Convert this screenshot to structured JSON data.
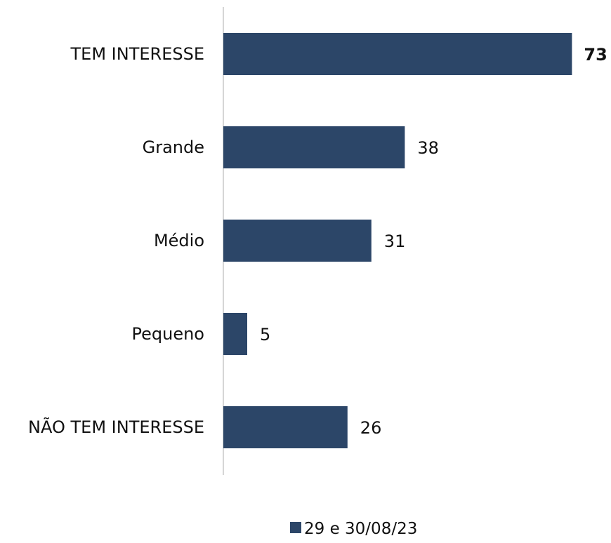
{
  "chart_data": {
    "type": "bar",
    "orientation": "horizontal",
    "categories": [
      "TEM INTERESSE",
      "Grande",
      "Médio",
      "Pequeno",
      "NÃO TEM INTERESSE"
    ],
    "series": [
      {
        "name": "29 e 30/08/23",
        "values": [
          73,
          38,
          31,
          5,
          26
        ]
      }
    ],
    "value_labels": [
      "73",
      "38",
      "31",
      "5",
      "26"
    ],
    "bold_labels": [
      true,
      false,
      false,
      false,
      false
    ],
    "xlim": [
      0,
      75
    ],
    "grid": false,
    "legend": "bottom-center",
    "colors": {
      "bar": "#2c4668",
      "axis": "#c8c8c8",
      "text": "#111111"
    }
  }
}
